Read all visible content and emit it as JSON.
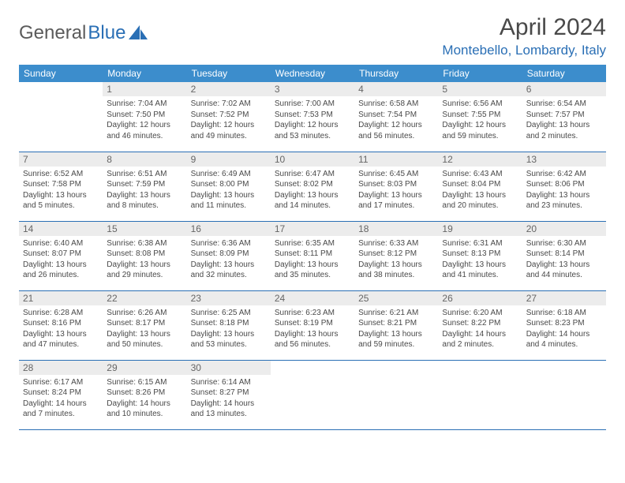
{
  "logo": {
    "text_gray": "General",
    "text_blue": "Blue"
  },
  "header": {
    "month_title": "April 2024",
    "location": "Montebello, Lombardy, Italy"
  },
  "colors": {
    "header_bg": "#3c8dcc",
    "header_text": "#ffffff",
    "accent": "#2a6fb5",
    "daynum_bg": "#ececec",
    "daynum_text": "#666666",
    "body_text": "#494949",
    "logo_gray": "#5b5b5b",
    "row_border": "#2a6fb5",
    "month_title_fontsize": 30,
    "location_fontsize": 17,
    "dow_fontsize": 12,
    "daynum_fontsize": 12,
    "info_fontsize": 10
  },
  "dow": [
    "Sunday",
    "Monday",
    "Tuesday",
    "Wednesday",
    "Thursday",
    "Friday",
    "Saturday"
  ],
  "weeks": [
    [
      null,
      {
        "n": "1",
        "sr": "Sunrise: 7:04 AM",
        "ss": "Sunset: 7:50 PM",
        "d1": "Daylight: 12 hours",
        "d2": "and 46 minutes."
      },
      {
        "n": "2",
        "sr": "Sunrise: 7:02 AM",
        "ss": "Sunset: 7:52 PM",
        "d1": "Daylight: 12 hours",
        "d2": "and 49 minutes."
      },
      {
        "n": "3",
        "sr": "Sunrise: 7:00 AM",
        "ss": "Sunset: 7:53 PM",
        "d1": "Daylight: 12 hours",
        "d2": "and 53 minutes."
      },
      {
        "n": "4",
        "sr": "Sunrise: 6:58 AM",
        "ss": "Sunset: 7:54 PM",
        "d1": "Daylight: 12 hours",
        "d2": "and 56 minutes."
      },
      {
        "n": "5",
        "sr": "Sunrise: 6:56 AM",
        "ss": "Sunset: 7:55 PM",
        "d1": "Daylight: 12 hours",
        "d2": "and 59 minutes."
      },
      {
        "n": "6",
        "sr": "Sunrise: 6:54 AM",
        "ss": "Sunset: 7:57 PM",
        "d1": "Daylight: 13 hours",
        "d2": "and 2 minutes."
      }
    ],
    [
      {
        "n": "7",
        "sr": "Sunrise: 6:52 AM",
        "ss": "Sunset: 7:58 PM",
        "d1": "Daylight: 13 hours",
        "d2": "and 5 minutes."
      },
      {
        "n": "8",
        "sr": "Sunrise: 6:51 AM",
        "ss": "Sunset: 7:59 PM",
        "d1": "Daylight: 13 hours",
        "d2": "and 8 minutes."
      },
      {
        "n": "9",
        "sr": "Sunrise: 6:49 AM",
        "ss": "Sunset: 8:00 PM",
        "d1": "Daylight: 13 hours",
        "d2": "and 11 minutes."
      },
      {
        "n": "10",
        "sr": "Sunrise: 6:47 AM",
        "ss": "Sunset: 8:02 PM",
        "d1": "Daylight: 13 hours",
        "d2": "and 14 minutes."
      },
      {
        "n": "11",
        "sr": "Sunrise: 6:45 AM",
        "ss": "Sunset: 8:03 PM",
        "d1": "Daylight: 13 hours",
        "d2": "and 17 minutes."
      },
      {
        "n": "12",
        "sr": "Sunrise: 6:43 AM",
        "ss": "Sunset: 8:04 PM",
        "d1": "Daylight: 13 hours",
        "d2": "and 20 minutes."
      },
      {
        "n": "13",
        "sr": "Sunrise: 6:42 AM",
        "ss": "Sunset: 8:06 PM",
        "d1": "Daylight: 13 hours",
        "d2": "and 23 minutes."
      }
    ],
    [
      {
        "n": "14",
        "sr": "Sunrise: 6:40 AM",
        "ss": "Sunset: 8:07 PM",
        "d1": "Daylight: 13 hours",
        "d2": "and 26 minutes."
      },
      {
        "n": "15",
        "sr": "Sunrise: 6:38 AM",
        "ss": "Sunset: 8:08 PM",
        "d1": "Daylight: 13 hours",
        "d2": "and 29 minutes."
      },
      {
        "n": "16",
        "sr": "Sunrise: 6:36 AM",
        "ss": "Sunset: 8:09 PM",
        "d1": "Daylight: 13 hours",
        "d2": "and 32 minutes."
      },
      {
        "n": "17",
        "sr": "Sunrise: 6:35 AM",
        "ss": "Sunset: 8:11 PM",
        "d1": "Daylight: 13 hours",
        "d2": "and 35 minutes."
      },
      {
        "n": "18",
        "sr": "Sunrise: 6:33 AM",
        "ss": "Sunset: 8:12 PM",
        "d1": "Daylight: 13 hours",
        "d2": "and 38 minutes."
      },
      {
        "n": "19",
        "sr": "Sunrise: 6:31 AM",
        "ss": "Sunset: 8:13 PM",
        "d1": "Daylight: 13 hours",
        "d2": "and 41 minutes."
      },
      {
        "n": "20",
        "sr": "Sunrise: 6:30 AM",
        "ss": "Sunset: 8:14 PM",
        "d1": "Daylight: 13 hours",
        "d2": "and 44 minutes."
      }
    ],
    [
      {
        "n": "21",
        "sr": "Sunrise: 6:28 AM",
        "ss": "Sunset: 8:16 PM",
        "d1": "Daylight: 13 hours",
        "d2": "and 47 minutes."
      },
      {
        "n": "22",
        "sr": "Sunrise: 6:26 AM",
        "ss": "Sunset: 8:17 PM",
        "d1": "Daylight: 13 hours",
        "d2": "and 50 minutes."
      },
      {
        "n": "23",
        "sr": "Sunrise: 6:25 AM",
        "ss": "Sunset: 8:18 PM",
        "d1": "Daylight: 13 hours",
        "d2": "and 53 minutes."
      },
      {
        "n": "24",
        "sr": "Sunrise: 6:23 AM",
        "ss": "Sunset: 8:19 PM",
        "d1": "Daylight: 13 hours",
        "d2": "and 56 minutes."
      },
      {
        "n": "25",
        "sr": "Sunrise: 6:21 AM",
        "ss": "Sunset: 8:21 PM",
        "d1": "Daylight: 13 hours",
        "d2": "and 59 minutes."
      },
      {
        "n": "26",
        "sr": "Sunrise: 6:20 AM",
        "ss": "Sunset: 8:22 PM",
        "d1": "Daylight: 14 hours",
        "d2": "and 2 minutes."
      },
      {
        "n": "27",
        "sr": "Sunrise: 6:18 AM",
        "ss": "Sunset: 8:23 PM",
        "d1": "Daylight: 14 hours",
        "d2": "and 4 minutes."
      }
    ],
    [
      {
        "n": "28",
        "sr": "Sunrise: 6:17 AM",
        "ss": "Sunset: 8:24 PM",
        "d1": "Daylight: 14 hours",
        "d2": "and 7 minutes."
      },
      {
        "n": "29",
        "sr": "Sunrise: 6:15 AM",
        "ss": "Sunset: 8:26 PM",
        "d1": "Daylight: 14 hours",
        "d2": "and 10 minutes."
      },
      {
        "n": "30",
        "sr": "Sunrise: 6:14 AM",
        "ss": "Sunset: 8:27 PM",
        "d1": "Daylight: 14 hours",
        "d2": "and 13 minutes."
      },
      null,
      null,
      null,
      null
    ]
  ]
}
